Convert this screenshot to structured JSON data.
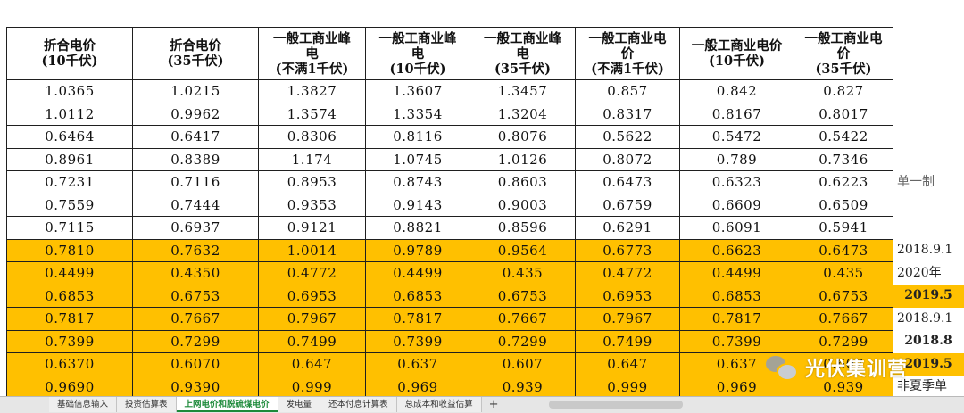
{
  "headers": [
    [
      "折合电价",
      "(10千伏)"
    ],
    [
      "折合电价",
      "(35千伏)"
    ],
    [
      "一般工商业峰",
      "电",
      "(不满1千伏)"
    ],
    [
      "一般工商业峰",
      "电",
      "(10千伏)"
    ],
    [
      "一般工商业峰",
      "电",
      "(35千伏)"
    ],
    [
      "一般工商业电",
      "价",
      "(不满1千伏)"
    ],
    [
      "一般工商业电价",
      "(10千伏)"
    ],
    [
      "一般工商业电",
      "价",
      "(35千伏)"
    ]
  ],
  "rows": [
    {
      "cells": [
        "1.0365",
        "1.0215",
        "1.3827",
        "1.3607",
        "1.3457",
        "0.857",
        "0.842",
        "0.827"
      ],
      "highlight": false
    },
    {
      "cells": [
        "1.0112",
        "0.9962",
        "1.3574",
        "1.3354",
        "1.3204",
        "0.8317",
        "0.8167",
        "0.8017"
      ],
      "highlight": false
    },
    {
      "cells": [
        "0.6464",
        "0.6417",
        "0.8306",
        "0.8116",
        "0.8076",
        "0.5622",
        "0.5472",
        "0.5422"
      ],
      "highlight": false
    },
    {
      "cells": [
        "0.8961",
        "0.8389",
        "1.174",
        "1.0745",
        "1.0126",
        "0.8072",
        "0.789",
        "0.7346"
      ],
      "highlight": false
    },
    {
      "cells": [
        "0.7231",
        "0.7116",
        "0.8953",
        "0.8743",
        "0.8603",
        "0.6473",
        "0.6323",
        "0.6223"
      ],
      "highlight": false
    },
    {
      "cells": [
        "0.7559",
        "0.7444",
        "0.9353",
        "0.9143",
        "0.9003",
        "0.6759",
        "0.6609",
        "0.6509"
      ],
      "highlight": false
    },
    {
      "cells": [
        "0.7115",
        "0.6937",
        "0.9121",
        "0.8821",
        "0.8596",
        "0.6291",
        "0.6091",
        "0.5941"
      ],
      "highlight": false
    },
    {
      "cells": [
        "0.7810",
        "0.7632",
        "1.0014",
        "0.9789",
        "0.9564",
        "0.6773",
        "0.6623",
        "0.6473"
      ],
      "highlight": true
    },
    {
      "cells": [
        "0.4499",
        "0.4350",
        "0.4772",
        "0.4499",
        "0.435",
        "0.4772",
        "0.4499",
        "0.435"
      ],
      "highlight": true
    },
    {
      "cells": [
        "0.6853",
        "0.6753",
        "0.6953",
        "0.6853",
        "0.6753",
        "0.6953",
        "0.6853",
        "0.6753"
      ],
      "highlight": true
    },
    {
      "cells": [
        "0.7817",
        "0.7667",
        "0.7967",
        "0.7817",
        "0.7667",
        "0.7967",
        "0.7817",
        "0.7667"
      ],
      "highlight": true
    },
    {
      "cells": [
        "0.7399",
        "0.7299",
        "0.7499",
        "0.7399",
        "0.7299",
        "0.7499",
        "0.7399",
        "0.7299"
      ],
      "highlight": true
    },
    {
      "cells": [
        "0.6370",
        "0.6070",
        "0.647",
        "0.637",
        "0.607",
        "0.647",
        "0.637",
        "0.607"
      ],
      "highlight": true
    },
    {
      "cells": [
        "0.9690",
        "0.9390",
        "0.999",
        "0.969",
        "0.939",
        "0.999",
        "0.969",
        "0.939"
      ],
      "highlight": true
    }
  ],
  "side_notes": [
    {
      "row": 4,
      "text": "单一制",
      "style": "w grey"
    },
    {
      "row": 7,
      "text": "2018.9.1",
      "style": "w"
    },
    {
      "row": 8,
      "text": "2020年",
      "style": "w"
    },
    {
      "row": 9,
      "text": "2019.5",
      "style": "hl center"
    },
    {
      "row": 10,
      "text": "2018.9.1",
      "style": "w"
    },
    {
      "row": 11,
      "text": "2018.8",
      "style": "w center"
    },
    {
      "row": 12,
      "text": "2019.5",
      "style": "hl center"
    },
    {
      "row": 13,
      "text": "非夏季单",
      "style": "w"
    }
  ],
  "sheet_tabs": [
    {
      "label": "基础信息输入",
      "active": false
    },
    {
      "label": "投资估算表",
      "active": false
    },
    {
      "label": "上网电价和脱硫煤电价",
      "active": true
    },
    {
      "label": "发电量",
      "active": false
    },
    {
      "label": "还本付息计算表",
      "active": false
    },
    {
      "label": "总成本和收益估算",
      "active": false
    }
  ],
  "add_tab_label": "+",
  "watermark": {
    "text": "光伏集训营"
  },
  "colors": {
    "highlight": "#ffc000",
    "active_tab": "#1d8a3a"
  }
}
